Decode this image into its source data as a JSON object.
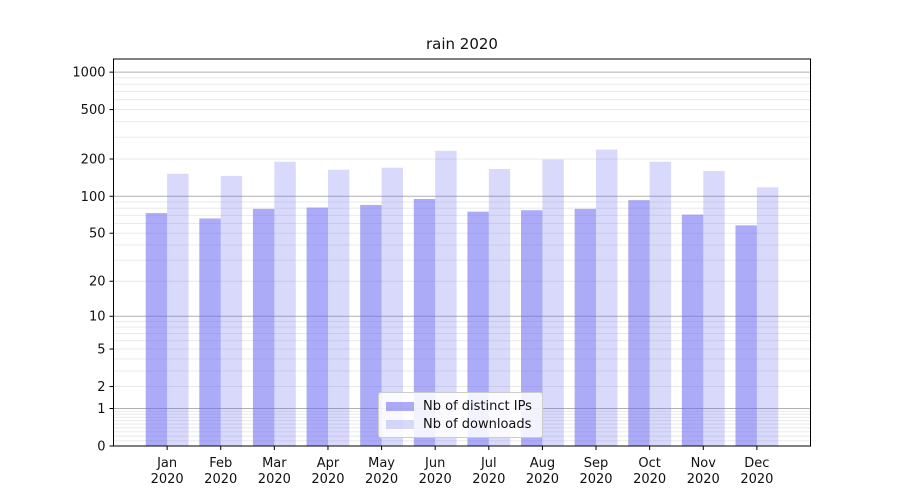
{
  "chart_data": {
    "type": "bar",
    "title": "rain 2020",
    "categories": [
      "Jan",
      "Feb",
      "Mar",
      "Apr",
      "May",
      "Jun",
      "Jul",
      "Aug",
      "Sep",
      "Oct",
      "Nov",
      "Dec"
    ],
    "x_tick_second_line": "2020",
    "series": [
      {
        "name": "Nb of distinct IPs",
        "color": "rgba(102,102,240,0.55)",
        "values": [
          73,
          66,
          79,
          81,
          85,
          95,
          75,
          77,
          79,
          93,
          71,
          58
        ]
      },
      {
        "name": "Nb of downloads",
        "color": "rgba(102,102,240,0.25)",
        "values": [
          152,
          146,
          190,
          164,
          170,
          233,
          166,
          198,
          238,
          190,
          160,
          118
        ]
      }
    ],
    "y_axis": {
      "scale": "log1p",
      "ylim": [
        0,
        1275
      ],
      "major_ticks": [
        0,
        1,
        2,
        5,
        10,
        20,
        50,
        100,
        200,
        500,
        1000
      ],
      "emphasized_gridlines": [
        1,
        10,
        100,
        1000
      ]
    },
    "grid": {
      "on": true,
      "major_color": "#b0b0b0",
      "minor_color": "#e7e7e7"
    },
    "legend": {
      "position": "inside-bottom-center"
    },
    "colors": {
      "axis": "#000000",
      "text": "#111111",
      "background": "#ffffff"
    }
  }
}
